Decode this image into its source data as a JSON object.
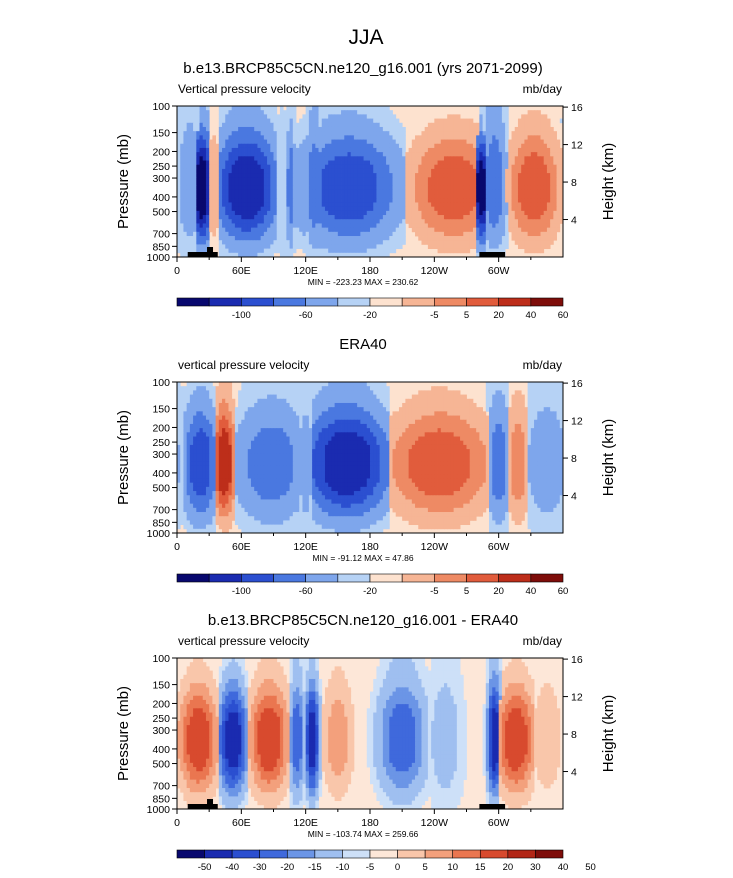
{
  "page_title": "JJA",
  "palette_diverging_12": [
    "#08086e",
    "#1a2bb0",
    "#2b4fd0",
    "#4a78e0",
    "#7ea6ec",
    "#b6d2f5",
    "#fde2cf",
    "#f6b595",
    "#ee8a64",
    "#e15c3c",
    "#bd2e1a",
    "#7e0d0a"
  ],
  "palette_diverging_14": [
    "#08086e",
    "#1a2bb0",
    "#2b4fd0",
    "#3f69dc",
    "#6b95e6",
    "#9fbff0",
    "#cde0f8",
    "#fde7d8",
    "#f9c6aa",
    "#f3a07c",
    "#ea7650",
    "#d84a2e",
    "#b22616",
    "#7e0d0a"
  ],
  "chart_data": [
    {
      "type": "heatmap",
      "title": "b.e13.BRCP85C5CN.ne120_g16.001 (yrs 2071-2099)",
      "left_label": "Vertical pressure velocity",
      "right_label": "mb/day",
      "ylabel": "Pressure (mb)",
      "y2label": "Height (km)",
      "xlabel": "",
      "x_ticks": [
        "0",
        "60E",
        "120E",
        "180",
        "120W",
        "60W"
      ],
      "x_tick_lon": [
        0,
        60,
        120,
        180,
        240,
        300
      ],
      "x_range": [
        0,
        360
      ],
      "y_ticks": [
        "100",
        "150",
        "200",
        "250",
        "300",
        "400",
        "500",
        "700",
        "850",
        "1000"
      ],
      "y_tick_values": [
        100,
        150,
        200,
        250,
        300,
        400,
        500,
        700,
        850,
        1000
      ],
      "y_range": [
        100,
        1000
      ],
      "y2_ticks": [
        "4",
        "8",
        "12",
        "16"
      ],
      "y2_tick_km": [
        4,
        8,
        12,
        16
      ],
      "min_max_text": "MIN = -223.23   MAX = 230.62",
      "colorbar_labels": [
        "-100",
        "-60",
        "-20",
        "-5",
        "5",
        "20",
        "40",
        "60"
      ],
      "colorbar_label_after_box": [
        1,
        3,
        5,
        7,
        8,
        9,
        10,
        11
      ],
      "palette": "12",
      "topography": true,
      "bands": [
        {
          "lon": 12,
          "w": 8,
          "level": 4,
          "lift": 0.55
        },
        {
          "lon": 23,
          "w": 8,
          "level": 0,
          "lift": 0.2
        },
        {
          "lon": 34,
          "w": 5,
          "level": 7,
          "lift": 0.3
        },
        {
          "lon": 65,
          "w": 22,
          "level": 1,
          "lift": 0.25
        },
        {
          "lon": 98,
          "w": 3,
          "level": 5,
          "lift": 0.1
        },
        {
          "lon": 106,
          "w": 3,
          "level": 3,
          "lift": 0.25
        },
        {
          "lon": 128,
          "w": 6,
          "level": 3,
          "lift": 0.4
        },
        {
          "lon": 160,
          "w": 34,
          "level": 2,
          "lift": 0.2
        },
        {
          "lon": 258,
          "w": 30,
          "level": 9,
          "lift": 0.15
        },
        {
          "lon": 284,
          "w": 6,
          "level": 0,
          "lift": 0.05
        },
        {
          "lon": 296,
          "w": 8,
          "level": 3,
          "lift": 0.6
        },
        {
          "lon": 333,
          "w": 18,
          "level": 9,
          "lift": 0.22
        }
      ]
    },
    {
      "type": "heatmap",
      "title": "ERA40",
      "left_label": "vertical pressure velocity",
      "right_label": "mb/day",
      "ylabel": "Pressure (mb)",
      "y2label": "Height (km)",
      "xlabel": "",
      "x_ticks": [
        "0",
        "60E",
        "120E",
        "180",
        "120W",
        "60W"
      ],
      "x_tick_lon": [
        0,
        60,
        120,
        180,
        240,
        300
      ],
      "x_range": [
        0,
        360
      ],
      "y_ticks": [
        "100",
        "150",
        "200",
        "250",
        "300",
        "400",
        "500",
        "700",
        "850",
        "1000"
      ],
      "y_tick_values": [
        100,
        150,
        200,
        250,
        300,
        400,
        500,
        700,
        850,
        1000
      ],
      "y_range": [
        100,
        1000
      ],
      "y2_ticks": [
        "4",
        "8",
        "12",
        "16"
      ],
      "y2_tick_km": [
        4,
        8,
        12,
        16
      ],
      "min_max_text": "MIN = -91.12   MAX = 47.86",
      "colorbar_labels": [
        "-100",
        "-60",
        "-20",
        "-5",
        "5",
        "20",
        "40",
        "60"
      ],
      "colorbar_label_after_box": [
        1,
        3,
        5,
        7,
        8,
        9,
        10,
        11
      ],
      "palette": "12",
      "topography": false,
      "bands": [
        {
          "lon": 22,
          "w": 12,
          "level": 2,
          "lift": 0.22
        },
        {
          "lon": 44,
          "w": 8,
          "level": 10,
          "lift": 0.3
        },
        {
          "lon": 88,
          "w": 24,
          "level": 3,
          "lift": 0.2
        },
        {
          "lon": 120,
          "w": 5,
          "level": 4,
          "lift": 0.2
        },
        {
          "lon": 158,
          "w": 30,
          "level": 1,
          "lift": 0.25
        },
        {
          "lon": 245,
          "w": 36,
          "level": 9,
          "lift": 0.2
        },
        {
          "lon": 300,
          "w": 8,
          "level": 3,
          "lift": 0.3
        },
        {
          "lon": 318,
          "w": 8,
          "level": 8,
          "lift": 0.3
        },
        {
          "lon": 345,
          "w": 14,
          "level": 4,
          "lift": 0.35
        }
      ]
    },
    {
      "type": "heatmap",
      "title": "b.e13.BRCP85C5CN.ne120_g16.001 - ERA40",
      "left_label": "vertical pressure velocity",
      "right_label": "mb/day",
      "ylabel": "Pressure (mb)",
      "y2label": "Height (km)",
      "xlabel": "",
      "x_ticks": [
        "0",
        "60E",
        "120E",
        "180",
        "120W",
        "60W"
      ],
      "x_tick_lon": [
        0,
        60,
        120,
        180,
        240,
        300
      ],
      "x_range": [
        0,
        360
      ],
      "y_ticks": [
        "100",
        "150",
        "200",
        "250",
        "300",
        "400",
        "500",
        "700",
        "850",
        "1000"
      ],
      "y_tick_values": [
        100,
        150,
        200,
        250,
        300,
        400,
        500,
        700,
        850,
        1000
      ],
      "y_range": [
        100,
        1000
      ],
      "y2_ticks": [
        "4",
        "8",
        "12",
        "16"
      ],
      "y2_tick_km": [
        4,
        8,
        12,
        16
      ],
      "min_max_text": "MIN = -103.74   MAX = 259.66",
      "colorbar_labels": [
        "-50",
        "-40",
        "-30",
        "-20",
        "-15",
        "-10",
        "-5",
        "0",
        "5",
        "10",
        "15",
        "20",
        "30",
        "40",
        "50"
      ],
      "colorbar_label_after_box": [
        0,
        1,
        2,
        3,
        4,
        5,
        6,
        7,
        8,
        9,
        10,
        11,
        12,
        13,
        14
      ],
      "palette": "14",
      "topography": true,
      "bands": [
        {
          "lon": 20,
          "w": 14,
          "level": 11,
          "lift": 0.2
        },
        {
          "lon": 52,
          "w": 10,
          "level": 1,
          "lift": 0.15
        },
        {
          "lon": 86,
          "w": 14,
          "level": 11,
          "lift": 0.25
        },
        {
          "lon": 112,
          "w": 5,
          "level": 3,
          "lift": 0.3
        },
        {
          "lon": 126,
          "w": 5,
          "level": 1,
          "lift": 0.2
        },
        {
          "lon": 150,
          "w": 10,
          "level": 9,
          "lift": 0.3
        },
        {
          "lon": 210,
          "w": 16,
          "level": 3,
          "lift": 0.3
        },
        {
          "lon": 250,
          "w": 10,
          "level": 5,
          "lift": 0.3
        },
        {
          "lon": 296,
          "w": 5,
          "level": 1,
          "lift": 0.3
        },
        {
          "lon": 316,
          "w": 14,
          "level": 11,
          "lift": 0.2
        },
        {
          "lon": 345,
          "w": 10,
          "level": 8,
          "lift": 0.4
        }
      ]
    }
  ]
}
